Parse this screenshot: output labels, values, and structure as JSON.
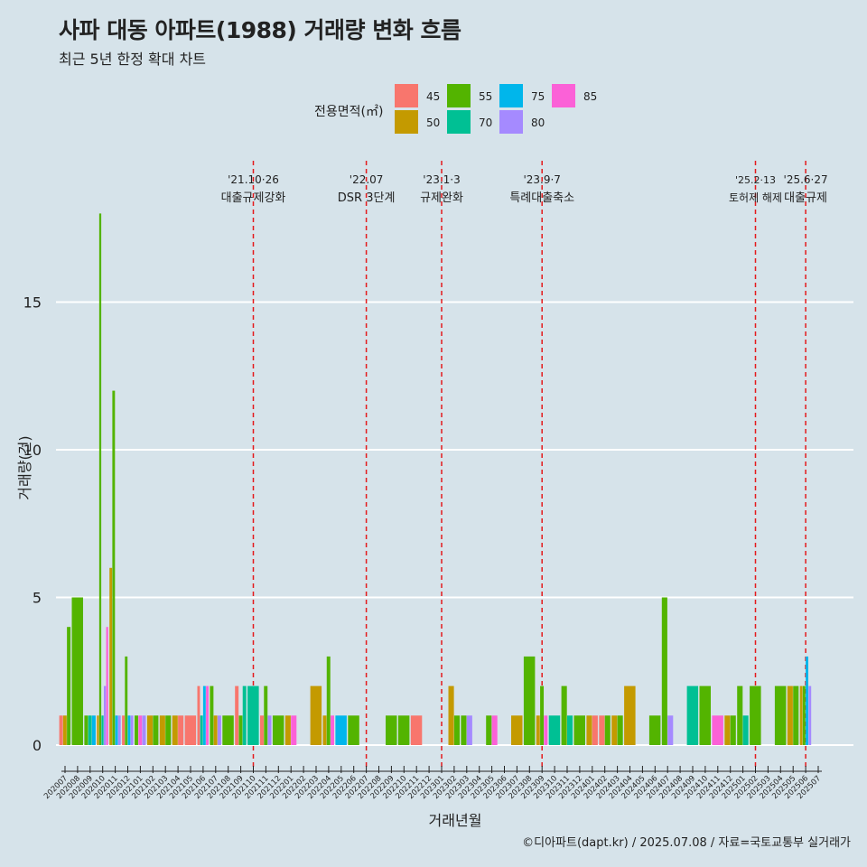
{
  "title": "사파 대동 아파트(1988) 거래량 변화 흐름",
  "subtitle": "최근 5년 한정 확대 차트",
  "caption": "©디아파트(dapt.kr) / 2025.07.08 / 자료=국토교통부 실거래가",
  "chart_data": {
    "type": "bar",
    "xlabel": "거래년월",
    "ylabel": "거래량(건)",
    "ylim": [
      0,
      18
    ],
    "yticks": [
      0,
      5,
      10,
      15
    ],
    "grid": "horizontal",
    "legend_title": "전용면적(㎡)",
    "legend_position": "top",
    "colors": {
      "45": "#f8766d",
      "50": "#c49a00",
      "55": "#53b400",
      "70": "#00c094",
      "75": "#00b6eb",
      "80": "#a58aff",
      "85": "#fb61d7"
    },
    "legend_items": [
      {
        "label": "45",
        "key": "45"
      },
      {
        "label": "50",
        "key": "50"
      },
      {
        "label": "55",
        "key": "55"
      },
      {
        "label": "70",
        "key": "70"
      },
      {
        "label": "75",
        "key": "75"
      },
      {
        "label": "80",
        "key": "80"
      },
      {
        "label": "85",
        "key": "85"
      }
    ],
    "months": [
      "202007",
      "202008",
      "202009",
      "202010",
      "202011",
      "202012",
      "202101",
      "202102",
      "202103",
      "202104",
      "202105",
      "202106",
      "202107",
      "202108",
      "202109",
      "202110",
      "202111",
      "202112",
      "202201",
      "202202",
      "202203",
      "202204",
      "202205",
      "202206",
      "202207",
      "202208",
      "202209",
      "202210",
      "202211",
      "202212",
      "202301",
      "202302",
      "202303",
      "202304",
      "202305",
      "202306",
      "202307",
      "202308",
      "202309",
      "202310",
      "202311",
      "202312",
      "202401",
      "202402",
      "202403",
      "202404",
      "202405",
      "202406",
      "202407",
      "202408",
      "202409",
      "202410",
      "202411",
      "202412",
      "202501",
      "202502",
      "202503",
      "202504",
      "202505",
      "202506",
      "202507"
    ],
    "series": [
      {
        "month": "202007",
        "bars": [
          {
            "area": "45",
            "value": 1
          },
          {
            "area": "50",
            "value": 1
          },
          {
            "area": "55",
            "value": 4
          }
        ]
      },
      {
        "month": "202008",
        "bars": [
          {
            "area": "55",
            "value": 5
          }
        ]
      },
      {
        "month": "202009",
        "bars": [
          {
            "area": "55",
            "value": 1
          },
          {
            "area": "70",
            "value": 1
          },
          {
            "area": "75",
            "value": 1
          }
        ]
      },
      {
        "month": "202010",
        "bars": [
          {
            "area": "50",
            "value": 1
          },
          {
            "area": "55",
            "value": 18
          },
          {
            "area": "70",
            "value": 1
          },
          {
            "area": "80",
            "value": 2
          },
          {
            "area": "85",
            "value": 4
          }
        ]
      },
      {
        "month": "202011",
        "bars": [
          {
            "area": "50",
            "value": 6
          },
          {
            "area": "55",
            "value": 12
          },
          {
            "area": "75",
            "value": 1
          },
          {
            "area": "80",
            "value": 1
          }
        ]
      },
      {
        "month": "202012",
        "bars": [
          {
            "area": "45",
            "value": 1
          },
          {
            "area": "55",
            "value": 3
          },
          {
            "area": "75",
            "value": 1
          },
          {
            "area": "80",
            "value": 1
          }
        ]
      },
      {
        "month": "202101",
        "bars": [
          {
            "area": "55",
            "value": 1
          },
          {
            "area": "85",
            "value": 1
          },
          {
            "area": "80",
            "value": 1
          }
        ]
      },
      {
        "month": "202102",
        "bars": [
          {
            "area": "50",
            "value": 1
          },
          {
            "area": "55",
            "value": 1
          }
        ]
      },
      {
        "month": "202103",
        "bars": [
          {
            "area": "50",
            "value": 1
          },
          {
            "area": "55",
            "value": 1
          }
        ]
      },
      {
        "month": "202104",
        "bars": [
          {
            "area": "50",
            "value": 1
          },
          {
            "area": "45",
            "value": 1
          }
        ]
      },
      {
        "month": "202105",
        "bars": [
          {
            "area": "45",
            "value": 1
          }
        ]
      },
      {
        "month": "202106",
        "bars": [
          {
            "area": "45",
            "value": 2
          },
          {
            "area": "70",
            "value": 1
          },
          {
            "area": "75",
            "value": 2
          },
          {
            "area": "85",
            "value": 2
          }
        ]
      },
      {
        "month": "202107",
        "bars": [
          {
            "area": "55",
            "value": 2
          },
          {
            "area": "50",
            "value": 1
          },
          {
            "area": "80",
            "value": 1
          }
        ]
      },
      {
        "month": "202108",
        "bars": [
          {
            "area": "55",
            "value": 1
          }
        ]
      },
      {
        "month": "202109",
        "bars": [
          {
            "area": "45",
            "value": 2
          },
          {
            "area": "55",
            "value": 1
          },
          {
            "area": "70",
            "value": 2
          }
        ]
      },
      {
        "month": "202110",
        "bars": [
          {
            "area": "70",
            "value": 2
          }
        ]
      },
      {
        "month": "202111",
        "bars": [
          {
            "area": "45",
            "value": 1
          },
          {
            "area": "55",
            "value": 2
          },
          {
            "area": "80",
            "value": 1
          }
        ]
      },
      {
        "month": "202112",
        "bars": [
          {
            "area": "55",
            "value": 1
          }
        ]
      },
      {
        "month": "202201",
        "bars": [
          {
            "area": "50",
            "value": 1
          },
          {
            "area": "85",
            "value": 1
          }
        ]
      },
      {
        "month": "202202",
        "bars": []
      },
      {
        "month": "202203",
        "bars": [
          {
            "area": "50",
            "value": 2
          }
        ]
      },
      {
        "month": "202204",
        "bars": [
          {
            "area": "50",
            "value": 1
          },
          {
            "area": "55",
            "value": 3
          },
          {
            "area": "85",
            "value": 1
          }
        ]
      },
      {
        "month": "202205",
        "bars": [
          {
            "area": "75",
            "value": 1
          }
        ]
      },
      {
        "month": "202206",
        "bars": [
          {
            "area": "55",
            "value": 1
          }
        ]
      },
      {
        "month": "202207",
        "bars": []
      },
      {
        "month": "202208",
        "bars": []
      },
      {
        "month": "202209",
        "bars": [
          {
            "area": "55",
            "value": 1
          }
        ]
      },
      {
        "month": "202210",
        "bars": [
          {
            "area": "55",
            "value": 1
          }
        ]
      },
      {
        "month": "202211",
        "bars": [
          {
            "area": "45",
            "value": 1
          }
        ]
      },
      {
        "month": "202212",
        "bars": []
      },
      {
        "month": "202301",
        "bars": []
      },
      {
        "month": "202302",
        "bars": [
          {
            "area": "50",
            "value": 2
          },
          {
            "area": "55",
            "value": 1
          }
        ]
      },
      {
        "month": "202303",
        "bars": [
          {
            "area": "55",
            "value": 1
          },
          {
            "area": "80",
            "value": 1
          }
        ]
      },
      {
        "month": "202304",
        "bars": []
      },
      {
        "month": "202305",
        "bars": [
          {
            "area": "55",
            "value": 1
          },
          {
            "area": "85",
            "value": 1
          }
        ]
      },
      {
        "month": "202306",
        "bars": []
      },
      {
        "month": "202307",
        "bars": [
          {
            "area": "50",
            "value": 1
          }
        ]
      },
      {
        "month": "202308",
        "bars": [
          {
            "area": "55",
            "value": 3
          }
        ]
      },
      {
        "month": "202309",
        "bars": [
          {
            "area": "50",
            "value": 1
          },
          {
            "area": "55",
            "value": 2
          },
          {
            "area": "85",
            "value": 1
          }
        ]
      },
      {
        "month": "202310",
        "bars": [
          {
            "area": "70",
            "value": 1
          }
        ]
      },
      {
        "month": "202311",
        "bars": [
          {
            "area": "55",
            "value": 2
          },
          {
            "area": "70",
            "value": 1
          }
        ]
      },
      {
        "month": "202312",
        "bars": [
          {
            "area": "55",
            "value": 1
          }
        ]
      },
      {
        "month": "202401",
        "bars": [
          {
            "area": "50",
            "value": 1
          },
          {
            "area": "45",
            "value": 1
          }
        ]
      },
      {
        "month": "202402",
        "bars": [
          {
            "area": "45",
            "value": 1
          },
          {
            "area": "55",
            "value": 1
          }
        ]
      },
      {
        "month": "202403",
        "bars": [
          {
            "area": "50",
            "value": 1
          },
          {
            "area": "55",
            "value": 1
          }
        ]
      },
      {
        "month": "202404",
        "bars": [
          {
            "area": "50",
            "value": 2
          }
        ]
      },
      {
        "month": "202405",
        "bars": []
      },
      {
        "month": "202406",
        "bars": [
          {
            "area": "55",
            "value": 1
          }
        ]
      },
      {
        "month": "202407",
        "bars": [
          {
            "area": "55",
            "value": 5
          },
          {
            "area": "80",
            "value": 1
          }
        ]
      },
      {
        "month": "202408",
        "bars": []
      },
      {
        "month": "202409",
        "bars": [
          {
            "area": "70",
            "value": 2
          }
        ]
      },
      {
        "month": "202410",
        "bars": [
          {
            "area": "55",
            "value": 2
          }
        ]
      },
      {
        "month": "202411",
        "bars": [
          {
            "area": "85",
            "value": 1
          }
        ]
      },
      {
        "month": "202412",
        "bars": [
          {
            "area": "50",
            "value": 1
          },
          {
            "area": "55",
            "value": 1
          }
        ]
      },
      {
        "month": "202501",
        "bars": [
          {
            "area": "55",
            "value": 2
          },
          {
            "area": "70",
            "value": 1
          }
        ]
      },
      {
        "month": "202502",
        "bars": [
          {
            "area": "55",
            "value": 2
          }
        ]
      },
      {
        "month": "202503",
        "bars": []
      },
      {
        "month": "202504",
        "bars": [
          {
            "area": "55",
            "value": 2
          }
        ]
      },
      {
        "month": "202505",
        "bars": [
          {
            "area": "50",
            "value": 2
          },
          {
            "area": "55",
            "value": 2
          }
        ]
      },
      {
        "month": "202506",
        "bars": [
          {
            "area": "50",
            "value": 2
          },
          {
            "area": "55",
            "value": 2
          },
          {
            "area": "75",
            "value": 3
          },
          {
            "area": "80",
            "value": 2
          }
        ]
      },
      {
        "month": "202507",
        "bars": []
      }
    ],
    "events": [
      {
        "month": "202110",
        "date": "'21.10·26",
        "label": "대출규제강화",
        "size": "normal"
      },
      {
        "month": "202207",
        "date": "'22.07",
        "label": "DSR 3단계",
        "size": "normal"
      },
      {
        "month": "202301",
        "date": "'23.1·3",
        "label": "규제완화",
        "size": "normal"
      },
      {
        "month": "202309",
        "date": "'23.9·7",
        "label": "특례대출축소",
        "size": "normal"
      },
      {
        "month": "202502",
        "date": "'25.2·13",
        "label": "토허제 해제",
        "size": "small"
      },
      {
        "month": "202506",
        "date": "'25.6·27",
        "label": "대출규제",
        "size": "normal"
      }
    ]
  }
}
